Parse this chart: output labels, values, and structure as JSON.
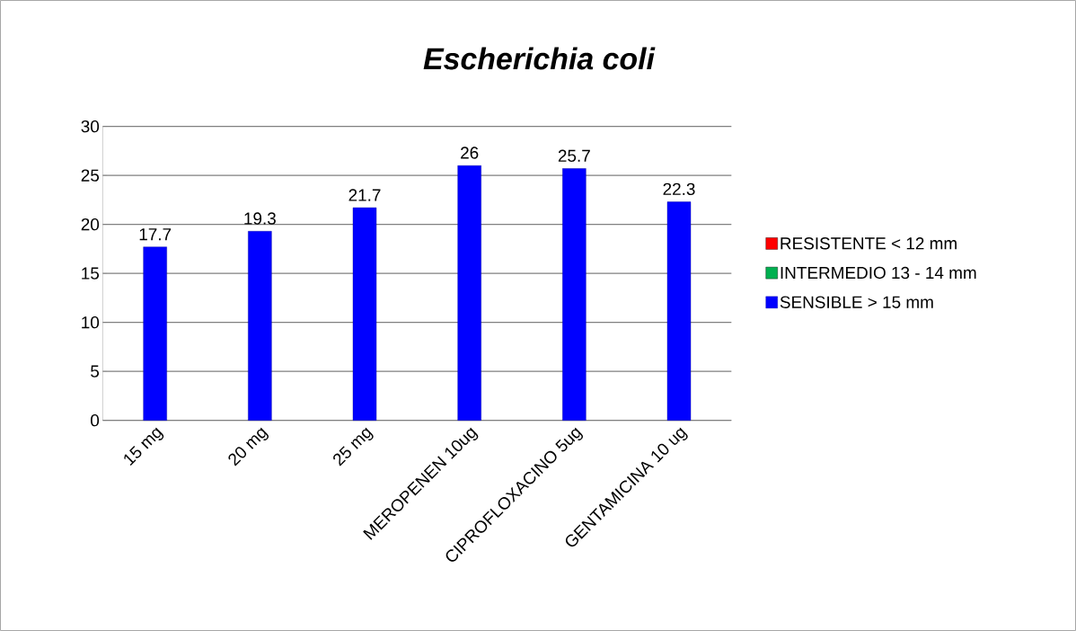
{
  "chart_data": {
    "type": "bar",
    "title": "Escherichia coli",
    "categories": [
      "15 mg",
      "20 mg",
      "25 mg",
      "MEROPENEN 10ug",
      "CIPROFLOXACINO 5ug",
      "GENTAMICINA 10 ug"
    ],
    "series": [
      {
        "name": "RESISTENTE < 12 mm",
        "color": "#ff0000",
        "values": [
          null,
          null,
          null,
          null,
          null,
          null
        ]
      },
      {
        "name": "INTERMEDIO 13 - 14 mm",
        "color": "#00b050",
        "values": [
          null,
          null,
          null,
          null,
          null,
          null
        ]
      },
      {
        "name": "SENSIBLE > 15 mm",
        "color": "#0000ff",
        "values": [
          17.7,
          19.3,
          21.7,
          26,
          25.7,
          22.3
        ]
      }
    ],
    "ylim": [
      0,
      30
    ],
    "yticks": [
      0,
      5,
      10,
      15,
      20,
      25,
      30
    ],
    "grid": "y",
    "legend": "right",
    "data_labels": true
  }
}
